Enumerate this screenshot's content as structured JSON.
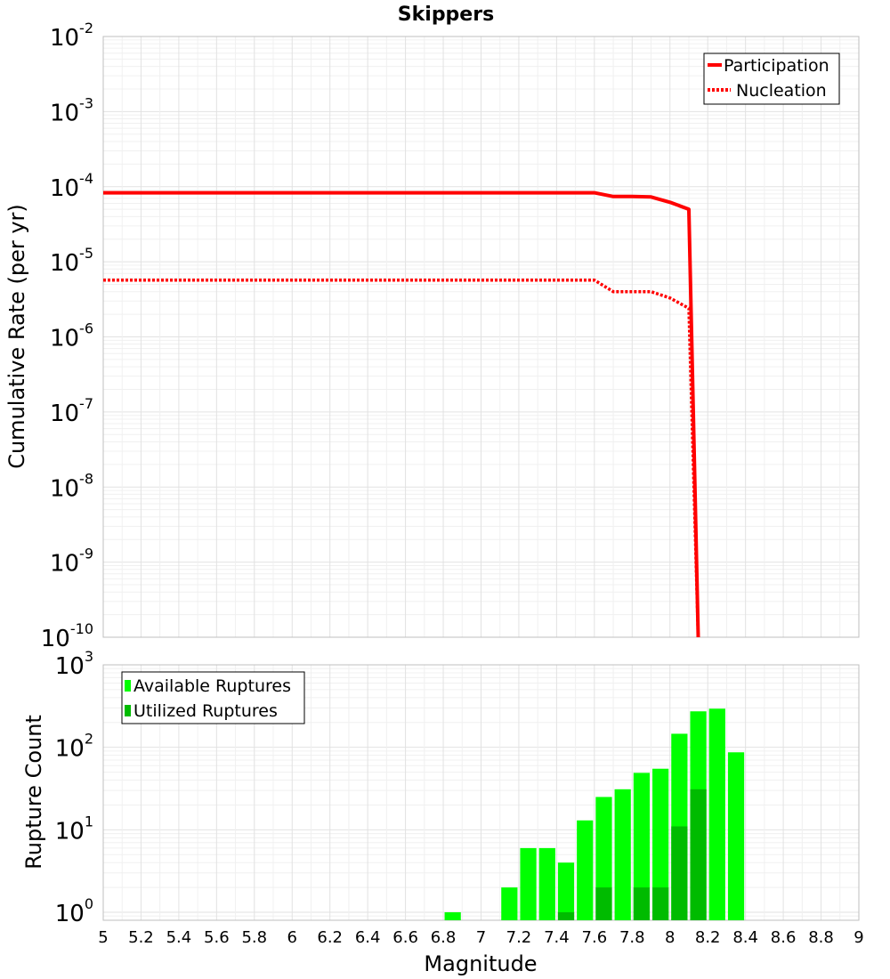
{
  "chart_data": [
    {
      "type": "line",
      "title": "Skippers",
      "xlabel": "",
      "ylabel": "Cumulative Rate (per yr)",
      "yscale": "log",
      "xlim": [
        5,
        9
      ],
      "ylim": [
        1e-10,
        0.01
      ],
      "yticks": [
        {
          "base": "10",
          "exp": "-10"
        },
        {
          "base": "10",
          "exp": "-9"
        },
        {
          "base": "10",
          "exp": "-8"
        },
        {
          "base": "10",
          "exp": "-7"
        },
        {
          "base": "10",
          "exp": "-6"
        },
        {
          "base": "10",
          "exp": "-5"
        },
        {
          "base": "10",
          "exp": "-4"
        },
        {
          "base": "10",
          "exp": "-3"
        },
        {
          "base": "10",
          "exp": "-2"
        }
      ],
      "legend": "top-right",
      "series": [
        {
          "name": "Participation",
          "style": "solid",
          "color": "#ff0000",
          "x": [
            5.0,
            7.6,
            7.7,
            7.8,
            7.9,
            8.0,
            8.1,
            8.15
          ],
          "y": [
            8.3e-05,
            8.3e-05,
            7.4e-05,
            7.4e-05,
            7.3e-05,
            6.2e-05,
            5e-05,
            1e-10
          ]
        },
        {
          "name": "Nucleation",
          "style": "dotted",
          "color": "#ff0000",
          "x": [
            5.0,
            7.6,
            7.7,
            7.8,
            7.9,
            8.0,
            8.1,
            8.15
          ],
          "y": [
            5.7e-06,
            5.7e-06,
            4e-06,
            4e-06,
            4e-06,
            3.3e-06,
            2.4e-06,
            1e-10
          ]
        }
      ]
    },
    {
      "type": "bar",
      "xlabel": "Magnitude",
      "ylabel": "Rupture Count",
      "yscale": "log",
      "xlim": [
        5,
        9
      ],
      "ylim": [
        0.8,
        1000
      ],
      "xticks": [
        "5",
        "5.2",
        "5.4",
        "5.6",
        "5.8",
        "6",
        "6.2",
        "6.4",
        "6.6",
        "6.8",
        "7",
        "7.2",
        "7.4",
        "7.6",
        "7.8",
        "8",
        "8.2",
        "8.4",
        "8.6",
        "8.8",
        "9"
      ],
      "yticks": [
        {
          "base": "10",
          "exp": "0",
          "value": 1
        },
        {
          "base": "10",
          "exp": "1",
          "value": 10
        },
        {
          "base": "10",
          "exp": "2",
          "value": 100
        },
        {
          "base": "10",
          "exp": "3",
          "value": 1000
        }
      ],
      "legend": "top-left",
      "bin_width": 0.1,
      "series": [
        {
          "name": "Available Ruptures",
          "color": "#00ff00",
          "x": [
            6.85,
            7.15,
            7.25,
            7.35,
            7.45,
            7.55,
            7.65,
            7.75,
            7.85,
            7.95,
            8.05,
            8.15,
            8.25,
            8.35
          ],
          "values": [
            1,
            2,
            6,
            6,
            4,
            13,
            25,
            31,
            49,
            55,
            146,
            273,
            294,
            87
          ]
        },
        {
          "name": "Utilized Ruptures",
          "color": "#00bb00",
          "x": [
            7.45,
            7.65,
            7.85,
            7.95,
            8.05,
            8.15
          ],
          "values": [
            1,
            2,
            2,
            2,
            11,
            31
          ]
        }
      ]
    }
  ]
}
